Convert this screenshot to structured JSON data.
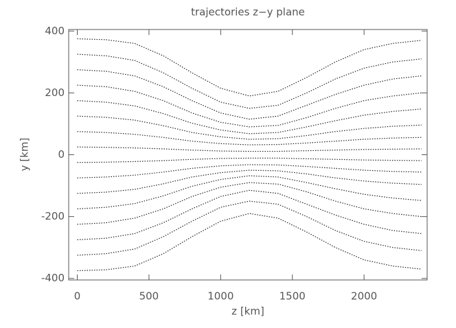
{
  "chart_data": {
    "type": "line",
    "title": "trajectories z−y plane",
    "x_label": "z [km]",
    "y_label": "y [km]",
    "color": "#222222",
    "line_style": "dotted",
    "xlim": [
      -60,
      2440
    ],
    "ylim": [
      -405,
      405
    ],
    "xticks": [
      0,
      500,
      1000,
      1500,
      2000
    ],
    "yticks": [
      -400,
      -200,
      0,
      200,
      400
    ],
    "x": [
      0,
      200,
      400,
      600,
      800,
      1000,
      1200,
      1400,
      1600,
      1800,
      2000,
      2200,
      2400
    ],
    "series": [
      {
        "values": [
          375,
          372,
          360,
          320,
          265,
          215,
          190,
          205,
          250,
          300,
          340,
          360,
          370
        ]
      },
      {
        "values": [
          325,
          320,
          305,
          265,
          215,
          170,
          150,
          160,
          200,
          245,
          280,
          300,
          310
        ]
      },
      {
        "values": [
          275,
          270,
          255,
          220,
          175,
          135,
          115,
          125,
          160,
          195,
          225,
          245,
          255
        ]
      },
      {
        "values": [
          225,
          220,
          205,
          175,
          135,
          105,
          90,
          95,
          120,
          150,
          175,
          190,
          200
        ]
      },
      {
        "values": [
          175,
          170,
          158,
          133,
          102,
          80,
          68,
          72,
          90,
          110,
          128,
          140,
          148
        ]
      },
      {
        "values": [
          125,
          121,
          112,
          94,
          72,
          58,
          50,
          52,
          62,
          75,
          85,
          92,
          96
        ]
      },
      {
        "values": [
          75,
          72,
          66,
          56,
          44,
          36,
          32,
          33,
          38,
          44,
          50,
          54,
          56
        ]
      },
      {
        "values": [
          25,
          24,
          22,
          19,
          15,
          12,
          11,
          11,
          13,
          15,
          17,
          18,
          19
        ]
      },
      {
        "values": [
          -25,
          -24,
          -22,
          -19,
          -15,
          -12,
          -11,
          -11,
          -13,
          -15,
          -17,
          -18,
          -19
        ]
      },
      {
        "values": [
          -75,
          -72,
          -66,
          -56,
          -44,
          -36,
          -32,
          -33,
          -38,
          -44,
          -50,
          -54,
          -56
        ]
      },
      {
        "values": [
          -125,
          -121,
          -112,
          -94,
          -72,
          -58,
          -50,
          -52,
          -62,
          -75,
          -85,
          -92,
          -96
        ]
      },
      {
        "values": [
          -175,
          -170,
          -158,
          -133,
          -102,
          -80,
          -68,
          -72,
          -90,
          -110,
          -128,
          -140,
          -148
        ]
      },
      {
        "values": [
          -225,
          -220,
          -205,
          -175,
          -135,
          -105,
          -90,
          -95,
          -120,
          -150,
          -175,
          -190,
          -200
        ]
      },
      {
        "values": [
          -275,
          -270,
          -255,
          -220,
          -175,
          -135,
          -115,
          -125,
          -160,
          -195,
          -225,
          -245,
          -255
        ]
      },
      {
        "values": [
          -325,
          -320,
          -305,
          -265,
          -215,
          -170,
          -150,
          -160,
          -200,
          -245,
          -280,
          -300,
          -310
        ]
      },
      {
        "values": [
          -375,
          -372,
          -360,
          -320,
          -265,
          -215,
          -190,
          -205,
          -250,
          -300,
          -340,
          -360,
          -370
        ]
      }
    ]
  }
}
